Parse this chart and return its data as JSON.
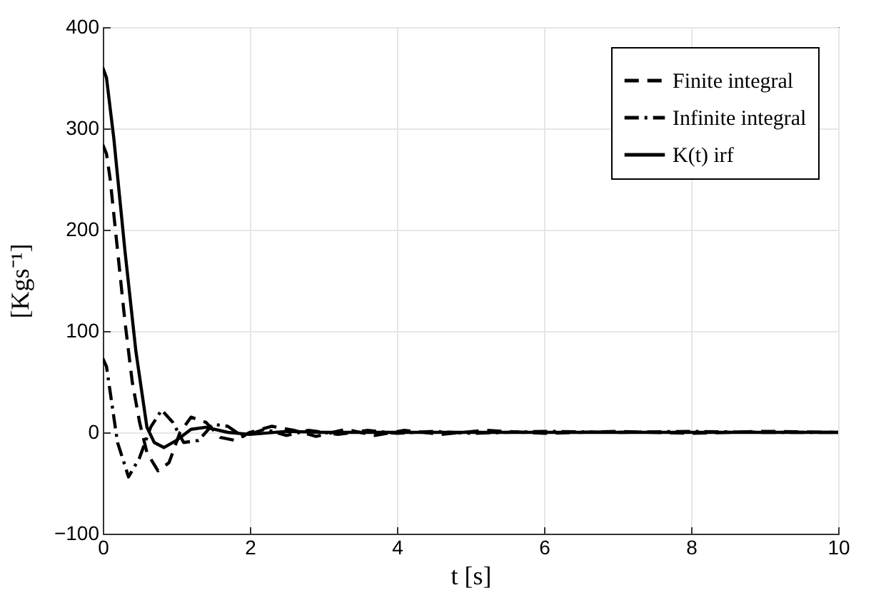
{
  "chart_data": {
    "type": "line",
    "xlabel": "t [s]",
    "ylabel": "[Kgs⁻¹]",
    "xlim": [
      0,
      10
    ],
    "ylim": [
      -100,
      400
    ],
    "xticks": [
      0,
      2,
      4,
      6,
      8,
      10
    ],
    "yticks": [
      -100,
      0,
      100,
      200,
      300,
      400
    ],
    "grid": true,
    "legend": "top right",
    "marker": "none",
    "series": [
      {
        "name": "Finite integral",
        "color": "#000000",
        "line_style": "dashed",
        "x": [
          0,
          0.05,
          0.1,
          0.2,
          0.3,
          0.4,
          0.5,
          0.6,
          0.75,
          0.9,
          1.05,
          1.2,
          1.4,
          1.6,
          1.8,
          2.0,
          2.3,
          2.6,
          2.9,
          3.3,
          3.7,
          4.1,
          4.6,
          5.2,
          6,
          7,
          8,
          9,
          10
        ],
        "values": [
          284,
          275,
          250,
          180,
          110,
          50,
          10,
          -20,
          -38,
          -30,
          0,
          15,
          10,
          -5,
          -8,
          0,
          6,
          2,
          -4,
          3,
          -3,
          2,
          -2,
          2,
          -1,
          1,
          -1,
          1,
          0
        ]
      },
      {
        "name": "Infinite integral",
        "color": "#000000",
        "line_style": "dashdot",
        "x": [
          0,
          0.05,
          0.1,
          0.2,
          0.35,
          0.5,
          0.65,
          0.8,
          0.95,
          1.1,
          1.3,
          1.5,
          1.7,
          1.9,
          2.2,
          2.5,
          2.8,
          3.2,
          3.6,
          4.0,
          4.5,
          5,
          6,
          7,
          8,
          9,
          10
        ],
        "values": [
          73,
          65,
          40,
          -10,
          -44,
          -25,
          5,
          22,
          10,
          -10,
          -8,
          8,
          6,
          -4,
          3,
          -3,
          2,
          -2,
          2,
          -1,
          1,
          -1,
          1,
          0,
          1,
          0,
          0
        ]
      },
      {
        "name": "K(t) irf",
        "color": "#000000",
        "line_style": "solid",
        "x": [
          0,
          0.05,
          0.15,
          0.3,
          0.45,
          0.6,
          0.7,
          0.83,
          1.0,
          1.2,
          1.4,
          1.7,
          2.0,
          2.5,
          3,
          4,
          5,
          6,
          7,
          8,
          9,
          10
        ],
        "values": [
          360,
          350,
          290,
          180,
          80,
          5,
          -10,
          -15,
          -8,
          3,
          5,
          0,
          -2,
          1,
          0,
          0,
          0,
          0,
          0,
          0,
          0,
          0
        ]
      }
    ]
  }
}
